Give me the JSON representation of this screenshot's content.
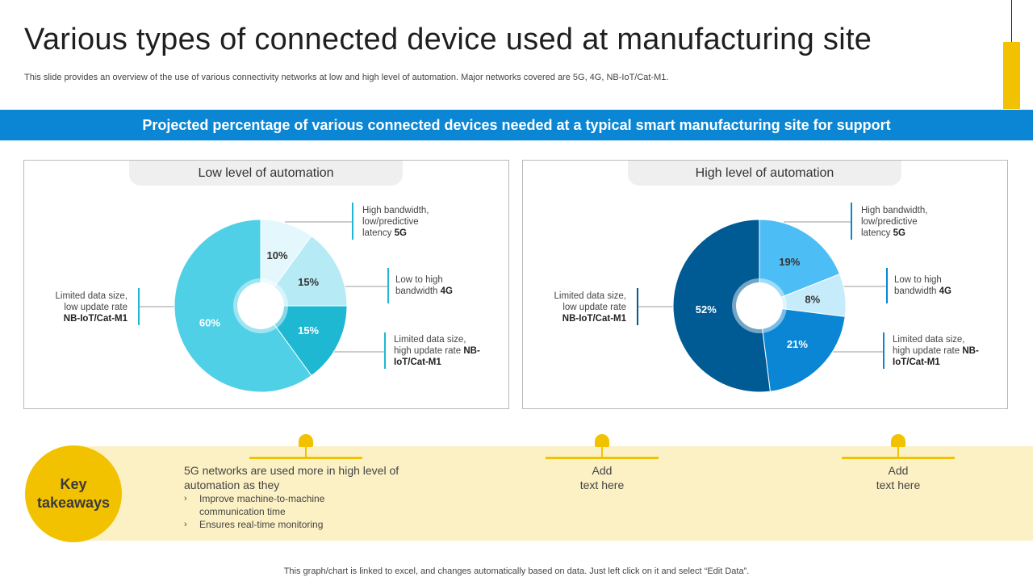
{
  "title": "Various types of connected device used at manufacturing site",
  "subtitle": "This slide provides an overview of the use of various connectivity networks at low and high level of automation. Major networks covered are 5G, 4G, NB-IoT/Cat-M1.",
  "banner": "Projected percentage of various connected devices needed at a typical smart manufacturing site for support",
  "panels": [
    {
      "heading": "Low level of automation",
      "annotations": {
        "a5g": {
          "line1": "High bandwidth,",
          "line2": "low/predictive",
          "line3_pre": "latency ",
          "line3_bold": "5G"
        },
        "a4g": {
          "line1": "Low to high",
          "line2_pre": "bandwidth ",
          "line2_bold": "4G"
        },
        "ahigh": {
          "line1": "Limited data size,",
          "line2_pre": "high update rate ",
          "line2_bold": "NB-",
          "line3_bold": "IoT/Cat-M1"
        },
        "alow": {
          "line1": "Limited data size,",
          "line2": "low update rate",
          "line3_bold": "NB-IoT/Cat-M1"
        }
      }
    },
    {
      "heading": "High level of automation",
      "annotations": {
        "a5g": {
          "line1": "High bandwidth,",
          "line2": "low/predictive",
          "line3_pre": "latency ",
          "line3_bold": "5G"
        },
        "a4g": {
          "line1": "Low to high",
          "line2_pre": "bandwidth ",
          "line2_bold": "4G"
        },
        "ahigh": {
          "line1": "Limited data size,",
          "line2_pre": "high update rate ",
          "line2_bold": "NB-",
          "line3_bold": "IoT/Cat-M1"
        },
        "alow": {
          "line1": "Limited data size,",
          "line2": "low update rate",
          "line3_bold": "NB-IoT/Cat-M1"
        }
      }
    }
  ],
  "chart_data": [
    {
      "type": "pie",
      "title": "Low level of automation",
      "categories": [
        "High bandwidth, low/predictive latency 5G",
        "Low to high bandwidth 4G",
        "Limited data size, high update rate NB-IoT/Cat-M1",
        "Limited data size, low update rate NB-IoT/Cat-M1"
      ],
      "values": [
        10,
        15,
        15,
        60
      ],
      "labels": [
        "10%",
        "15%",
        "15%",
        "60%"
      ],
      "colors": [
        "#e3f7fc",
        "#b6ebf6",
        "#1fb8d3",
        "#4fd0e6"
      ],
      "label_colors": [
        "#333333",
        "#333333",
        "#ffffff",
        "#ffffff"
      ]
    },
    {
      "type": "pie",
      "title": "High level of automation",
      "categories": [
        "High bandwidth, low/predictive latency 5G",
        "Low to high bandwidth 4G",
        "Limited data size, high update rate NB-IoT/Cat-M1",
        "Limited data size, low update rate NB-IoT/Cat-M1"
      ],
      "values": [
        19,
        8,
        21,
        52
      ],
      "labels": [
        "19%",
        "8%",
        "21%",
        "52%"
      ],
      "colors": [
        "#4dbef5",
        "#c6ebfb",
        "#0a86d4",
        "#005b94"
      ],
      "label_colors": [
        "#333333",
        "#333333",
        "#ffffff",
        "#ffffff"
      ]
    }
  ],
  "takeaways": {
    "circle_line1": "Key",
    "circle_line2": "takeaways",
    "main": "5G networks are used more in high level of automation as they",
    "bullet_marker": "›",
    "bullets": [
      "Improve  machine-to-machine communication time",
      "Ensures real-time  monitoring"
    ],
    "add1_line1": "Add",
    "add1_line2": "text here",
    "add2_line1": "Add",
    "add2_line2": "text here"
  },
  "footer": "This graph/chart is linked to excel,  and changes automatically based on data. Just left click on it and select “Edit Data”.",
  "colors": {
    "accent_blue": "#0a86d4",
    "accent_yellow": "#f2c200",
    "band": "#fcf1c4"
  }
}
